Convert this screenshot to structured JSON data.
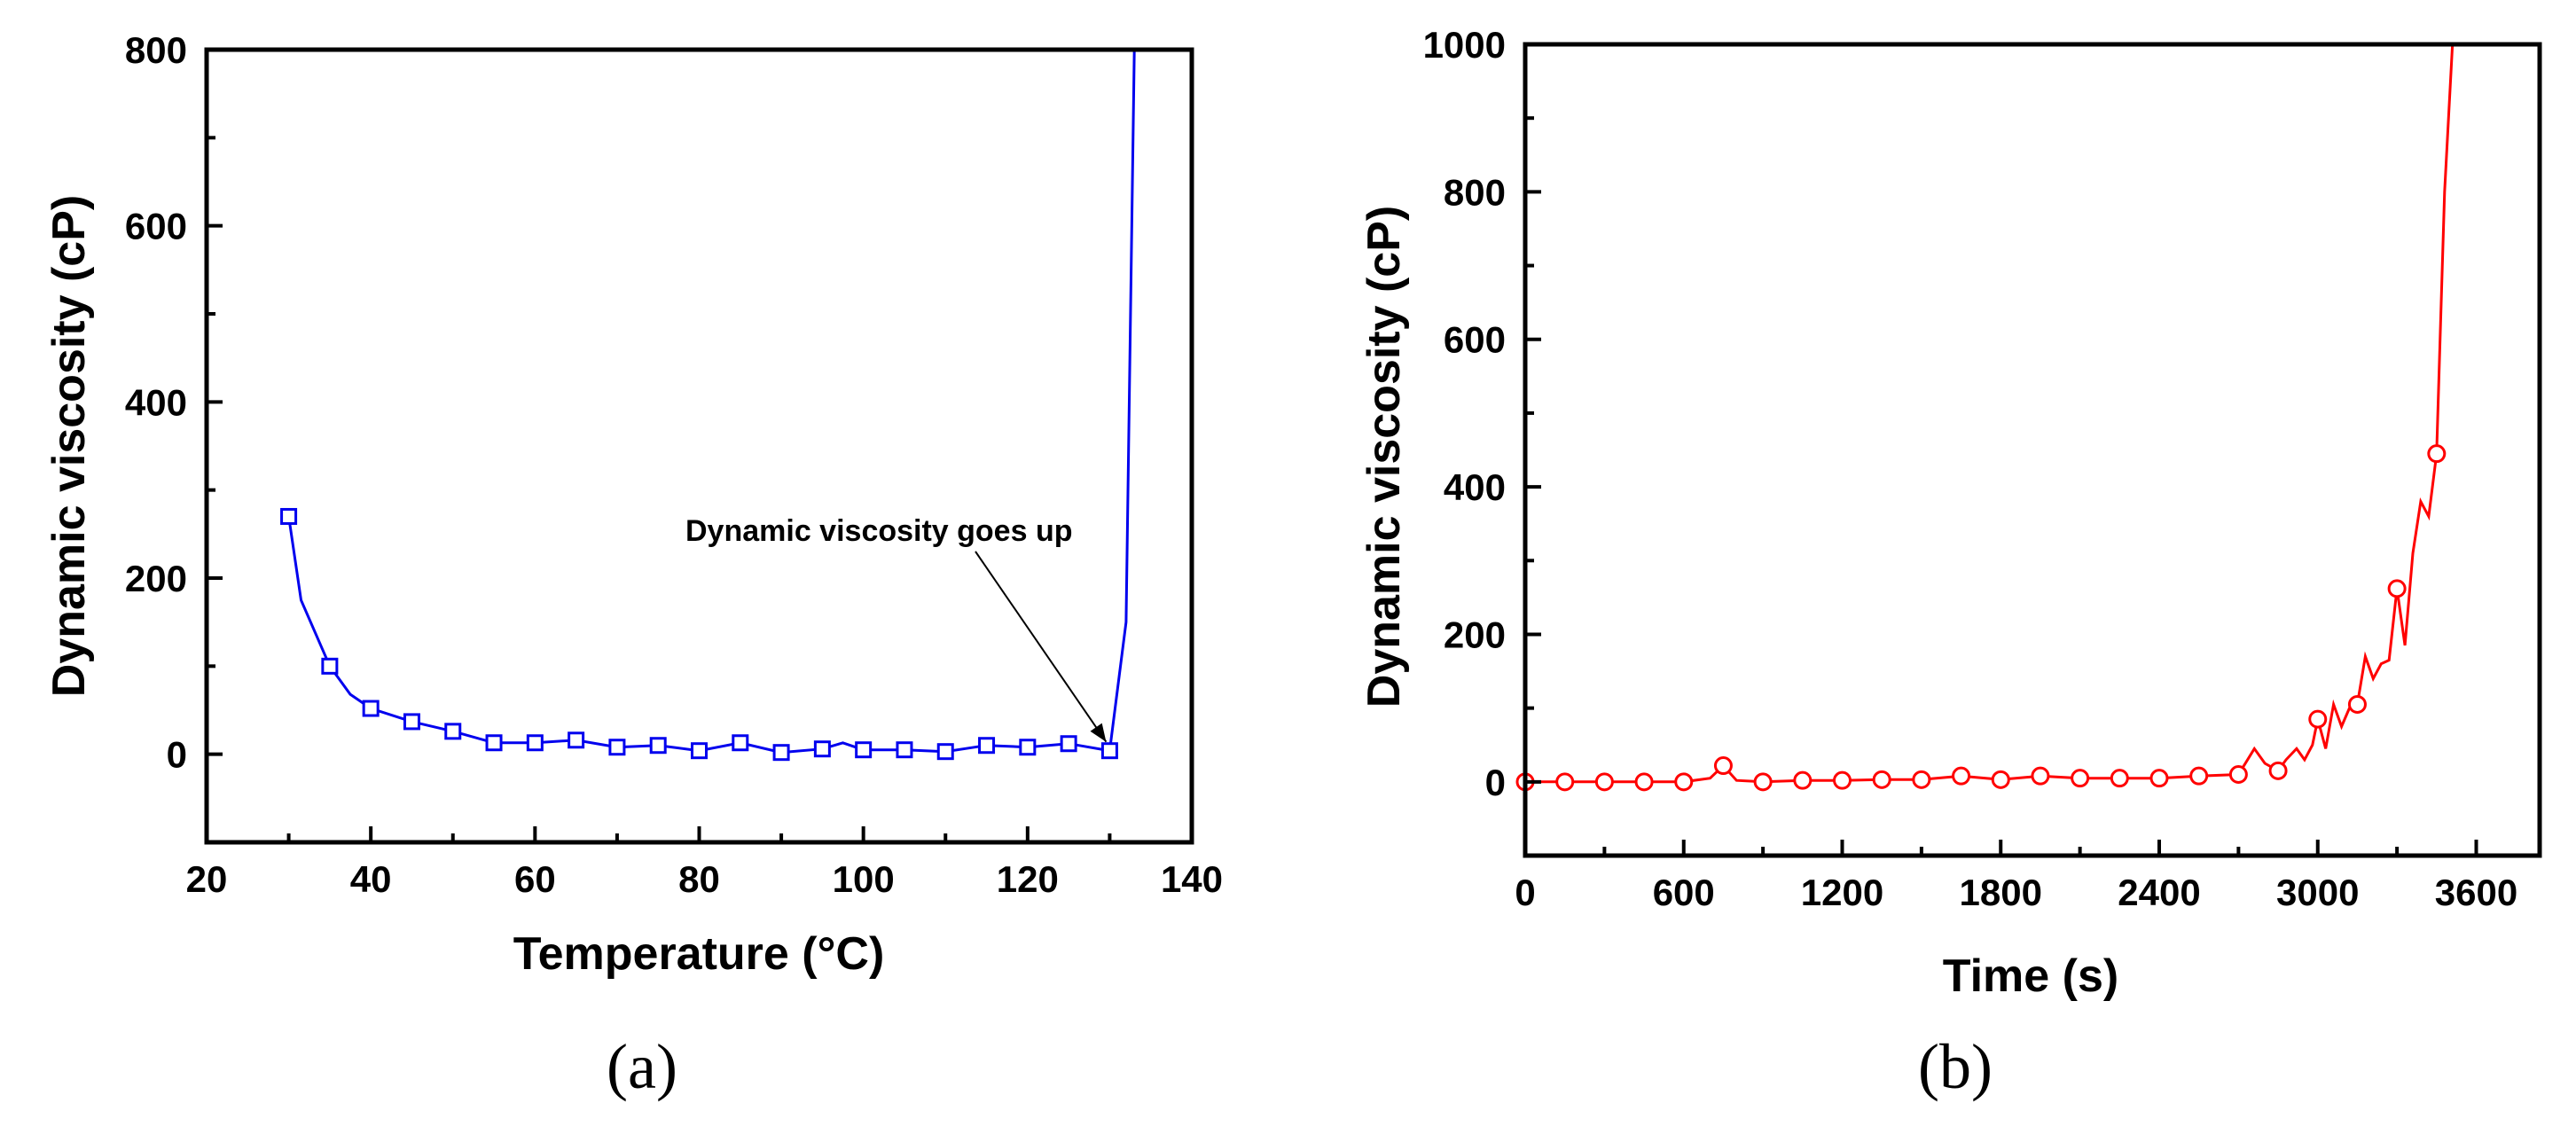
{
  "chart_data": [
    {
      "type": "line",
      "panel_label": "(a)",
      "title": "",
      "xlabel": "Temperature (°C)",
      "ylabel": "Dynamic viscosity (cP)",
      "xlim": [
        20,
        140
      ],
      "ylim": [
        -100,
        800
      ],
      "xticks": [
        20,
        40,
        60,
        80,
        100,
        120,
        140
      ],
      "yticks": [
        0,
        200,
        400,
        600,
        800
      ],
      "color": "#0000ee",
      "marker": "square",
      "series": [
        {
          "name": "Dynamic viscosity",
          "x": [
            30,
            31.5,
            35,
            37.5,
            40,
            45,
            50,
            55,
            60,
            65,
            70,
            75,
            80,
            85,
            90,
            95,
            97.5,
            100,
            105,
            110,
            115,
            120,
            125,
            130,
            132,
            133
          ],
          "y": [
            270,
            175,
            100,
            68,
            52,
            37,
            26,
            13,
            13,
            16,
            8,
            10,
            4,
            13,
            2,
            6,
            13,
            5,
            5,
            3,
            10,
            8,
            12,
            4,
            150,
            800
          ]
        }
      ],
      "markers": {
        "x": [
          30,
          35,
          40,
          45,
          50,
          55,
          60,
          65,
          70,
          75,
          80,
          85,
          90,
          95,
          100,
          105,
          110,
          115,
          120,
          125,
          130
        ],
        "y": [
          270,
          100,
          52,
          37,
          26,
          13,
          13,
          16,
          8,
          10,
          4,
          13,
          2,
          6,
          5,
          5,
          3,
          10,
          8,
          12,
          4
        ]
      },
      "annotation": {
        "text": "Dynamic viscosity goes up",
        "target_x": 130,
        "target_y": 4
      }
    },
    {
      "type": "line",
      "panel_label": "(b)",
      "title": "",
      "xlabel": "Time (s)",
      "ylabel": "Dynamic viscosity (cP)",
      "xlim": [
        0,
        3840
      ],
      "ylim": [
        -100,
        1000
      ],
      "xticks": [
        0,
        600,
        1200,
        1800,
        2400,
        3000,
        3600
      ],
      "yticks": [
        0,
        200,
        400,
        600,
        800,
        1000
      ],
      "color": "#ff0000",
      "marker": "circle",
      "series": [
        {
          "name": "Dynamic viscosity",
          "x": [
            0,
            150,
            300,
            450,
            600,
            700,
            750,
            800,
            900,
            1050,
            1200,
            1350,
            1500,
            1650,
            1800,
            1950,
            2100,
            2250,
            2400,
            2550,
            2700,
            2760,
            2800,
            2850,
            2880,
            2920,
            2950,
            2980,
            3000,
            3030,
            3060,
            3090,
            3120,
            3150,
            3180,
            3210,
            3240,
            3270,
            3300,
            3330,
            3360,
            3390,
            3420,
            3450,
            3480,
            3510
          ],
          "y": [
            0,
            0,
            0,
            0,
            0,
            5,
            22,
            2,
            0,
            2,
            2,
            3,
            3,
            8,
            3,
            8,
            5,
            5,
            5,
            8,
            10,
            45,
            25,
            15,
            30,
            45,
            30,
            50,
            85,
            45,
            105,
            75,
            100,
            105,
            170,
            140,
            160,
            165,
            262,
            185,
            310,
            380,
            360,
            445,
            800,
            1000
          ]
        }
      ],
      "markers": {
        "x": [
          0,
          150,
          300,
          450,
          600,
          750,
          900,
          1050,
          1200,
          1350,
          1500,
          1650,
          1800,
          1950,
          2100,
          2250,
          2400,
          2550,
          2700,
          2850,
          3000,
          3150,
          3300,
          3450
        ],
        "y": [
          0,
          0,
          0,
          0,
          0,
          22,
          0,
          2,
          2,
          3,
          3,
          8,
          3,
          8,
          5,
          5,
          5,
          8,
          10,
          15,
          85,
          105,
          262,
          445
        ]
      }
    }
  ]
}
